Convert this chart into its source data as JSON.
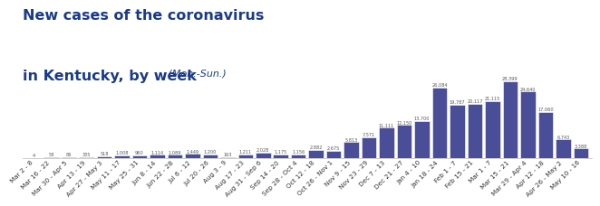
{
  "title_line1": "New cases of the coronavirus",
  "title_line2": "in Kentucky, by week",
  "title_suffix": " (Mon.-Sun.)",
  "bar_color": "#4a4e99",
  "background_color": "#ffffff",
  "title_color": "#1a3a8a",
  "categories": [
    "Mar 2 - 8",
    "Mar 16 - 22",
    "Mar 30 - Apr 5",
    "Apr 13 - 19",
    "Apr 27 - May 3",
    "May 11 - 17",
    "May 25 - 31",
    "Jun 8 - 14",
    "Jun 22 - 28",
    "Jul 6 - 12",
    "Jul 20 - 26",
    "Aug 3 - 9",
    "Aug 17 - 23",
    "Aug 31 - Sep 6",
    "Sep 14 - 20",
    "Sep 28 - Oct 4",
    "Oct 12 - 18",
    "Oct 26 - Nov 1",
    "Nov 9 - 15",
    "Nov 23 - 29",
    "Dec 7 - 13",
    "Dec 21 - 27",
    "Jan 4 - 10",
    "Jan 18 - 24",
    "Feb 1 - 7",
    "Feb 15 - 21",
    "Mar 1 - 7",
    "Mar 15 - 21",
    "Mar 29 - Apr 4",
    "Apr 12 - 18",
    "Apr 26 - May 2",
    "May 10 - 16"
  ],
  "values": [
    4,
    58,
    86,
    335,
    518,
    1008,
    960,
    1114,
    1089,
    1449,
    1200,
    163,
    1211,
    2028,
    1175,
    1156,
    2882,
    2675,
    5813,
    7571,
    11111,
    12150,
    13700,
    26084,
    19787,
    20117,
    21115,
    28399,
    24640,
    17060,
    6743,
    3388
  ],
  "ylim": [
    0,
    44000
  ],
  "tick_fontsize": 5.2,
  "value_fontsize": 3.6
}
